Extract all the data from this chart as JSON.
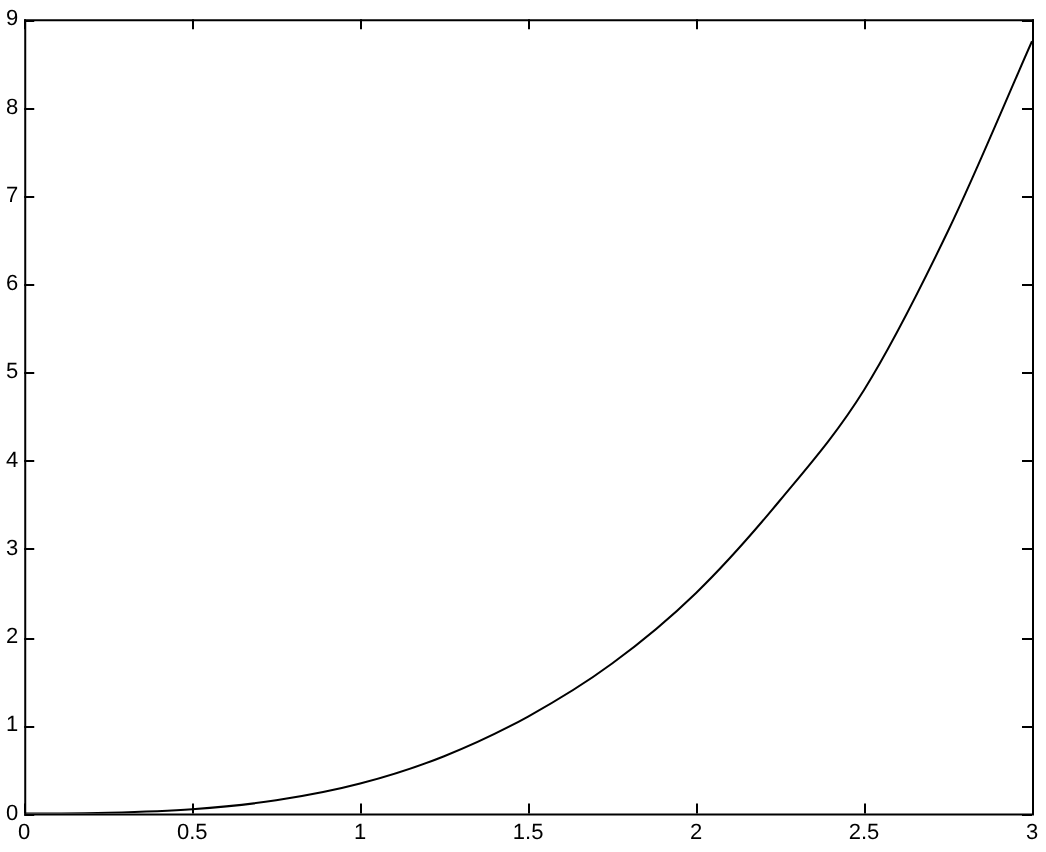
{
  "chart_data": {
    "type": "line",
    "x": [
      0,
      0.25,
      0.5,
      0.75,
      1,
      1.25,
      1.5,
      1.75,
      2,
      2.25,
      2.5,
      2.75,
      3
    ],
    "series": [
      {
        "color": "#000000",
        "values": [
          0,
          0.01,
          0.05,
          0.15,
          0.34,
          0.65,
          1.1,
          1.7,
          2.5,
          3.55,
          4.8,
          6.6,
          8.75
        ]
      }
    ],
    "xlim": [
      0,
      3
    ],
    "xticks": [
      0,
      0.5,
      1,
      1.5,
      2,
      2.5,
      3
    ],
    "ylim": [
      0,
      9
    ],
    "yticks": [
      0,
      1,
      2,
      3,
      4,
      5,
      6,
      7,
      8,
      9
    ],
    "grid": false,
    "legend": false,
    "marker": "none",
    "line_style": "solid"
  }
}
